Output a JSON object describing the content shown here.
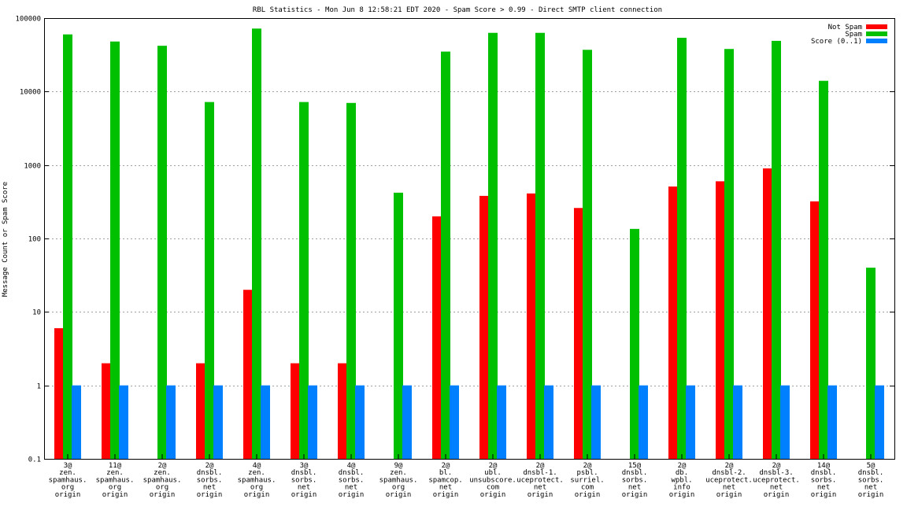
{
  "chart_data": {
    "type": "bar",
    "title": "RBL Statistics - Mon Jun  8 12:58:21 EDT 2020 - Spam Score > 0.99 - Direct SMTP client connection",
    "xlabel": "",
    "ylabel": "Message Count or Spam Score",
    "yscale": "log",
    "ylim": [
      0.1,
      100000
    ],
    "yticks": [
      0.1,
      1,
      10,
      100,
      1000,
      10000,
      100000
    ],
    "ytick_labels": [
      "0.1",
      "1",
      "10",
      "100",
      "1000",
      "10000",
      "100000"
    ],
    "grid": true,
    "legend_position": "top-right",
    "categories": [
      [
        "3@",
        "zen.",
        "spamhaus.",
        "org",
        "origin"
      ],
      [
        "11@",
        "zen.",
        "spamhaus.",
        "org",
        "origin"
      ],
      [
        "2@",
        "zen.",
        "spamhaus.",
        "org",
        "origin"
      ],
      [
        "2@",
        "dnsbl.",
        "sorbs.",
        "net",
        "origin"
      ],
      [
        "4@",
        "zen.",
        "spamhaus.",
        "org",
        "origin"
      ],
      [
        "3@",
        "dnsbl.",
        "sorbs.",
        "net",
        "origin"
      ],
      [
        "4@",
        "dnsbl.",
        "sorbs.",
        "net",
        "origin"
      ],
      [
        "9@",
        "zen.",
        "spamhaus.",
        "org",
        "origin"
      ],
      [
        "2@",
        "bl.",
        "spamcop.",
        "net",
        "origin"
      ],
      [
        "2@",
        "ubl.",
        "unsubscore.",
        "com",
        "origin"
      ],
      [
        "2@",
        "dnsbl-1.",
        "uceprotect.",
        "net",
        "origin"
      ],
      [
        "2@",
        "psbl.",
        "surriel.",
        "com",
        "origin"
      ],
      [
        "15@",
        "dnsbl.",
        "sorbs.",
        "net",
        "origin"
      ],
      [
        "2@",
        "db.",
        "wpbl.",
        "info",
        "origin"
      ],
      [
        "2@",
        "dnsbl-2.",
        "uceprotect.",
        "net",
        "origin"
      ],
      [
        "2@",
        "dnsbl-3.",
        "uceprotect.",
        "net",
        "origin"
      ],
      [
        "14@",
        "dnsbl.",
        "sorbs.",
        "net",
        "origin"
      ],
      [
        "5@",
        "dnsbl.",
        "sorbs.",
        "net",
        "origin"
      ]
    ],
    "series": [
      {
        "name": "Not Spam",
        "color": "#ff0000",
        "values": [
          6,
          2,
          null,
          2,
          20,
          2,
          2,
          null,
          200,
          380,
          410,
          260,
          null,
          510,
          600,
          900,
          320,
          null
        ]
      },
      {
        "name": "Spam",
        "color": "#00c000",
        "values": [
          60000,
          48000,
          42000,
          7200,
          72000,
          7200,
          7000,
          420,
          35000,
          63000,
          63000,
          37000,
          135,
          54000,
          38000,
          49000,
          14000,
          40
        ]
      },
      {
        "name": "Score (0..1)",
        "color": "#0080ff",
        "values": [
          1,
          1,
          1,
          1,
          1,
          1,
          1,
          1,
          1,
          1,
          1,
          1,
          1,
          1,
          1,
          1,
          1,
          1
        ]
      }
    ]
  }
}
